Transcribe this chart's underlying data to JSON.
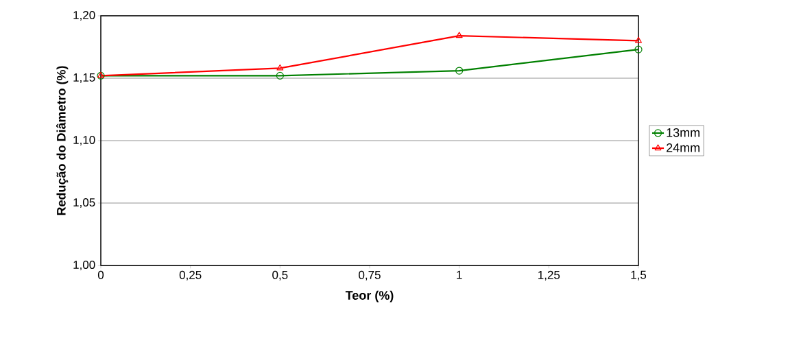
{
  "chart_data": {
    "type": "line",
    "xlabel": "Teor (%)",
    "ylabel": "Redução do Diâmetro (%)",
    "x": [
      0,
      0.5,
      1,
      1.5
    ],
    "series": [
      {
        "name": "13mm",
        "color": "#008000",
        "marker": "circle",
        "values": [
          1.152,
          1.152,
          1.156,
          1.173
        ]
      },
      {
        "name": "24mm",
        "color": "#ff0000",
        "marker": "triangle",
        "values": [
          1.152,
          1.158,
          1.184,
          1.18
        ]
      }
    ],
    "xlim": [
      0,
      1.5
    ],
    "ylim": [
      1.0,
      1.2
    ],
    "xticks": [
      0,
      {
        "value": 0.25,
        "label": "0,25"
      },
      {
        "value": 0.5,
        "label": "0,5"
      },
      {
        "value": 0.75,
        "label": "0,75"
      },
      1,
      {
        "value": 1.25,
        "label": "1,25"
      },
      {
        "value": 1.5,
        "label": "1,5"
      }
    ],
    "yticks": [
      {
        "value": 1.0,
        "label": "1,00"
      },
      {
        "value": 1.05,
        "label": "1,05"
      },
      {
        "value": 1.1,
        "label": "1,10"
      },
      {
        "value": 1.15,
        "label": "1,15"
      },
      {
        "value": 1.2,
        "label": "1,20"
      }
    ],
    "grid": "y",
    "legend": "right",
    "line_style": "solid"
  }
}
